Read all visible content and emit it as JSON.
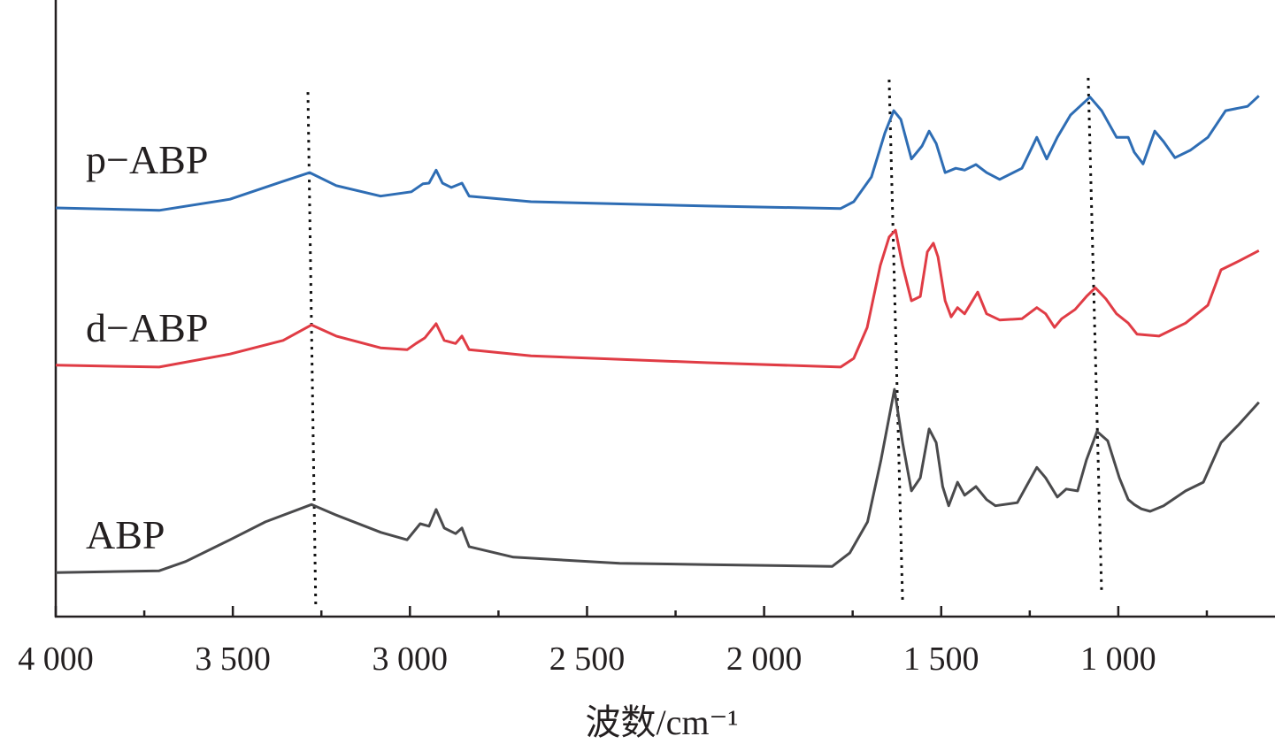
{
  "chart_data": {
    "type": "line",
    "title": "",
    "xlabel": "波数/cm⁻¹",
    "ylabel": "",
    "xlim": [
      4000,
      560
    ],
    "x_reversed": true,
    "ylim": [
      0,
      100
    ],
    "y_units": "arbitrary (offset transmittance)",
    "grid": false,
    "x_ticks": [
      4000,
      3500,
      3000,
      2500,
      2000,
      1500,
      1000
    ],
    "x_tick_labels": [
      "4 000",
      "3 500",
      "3 000",
      "2 500",
      "2 000",
      "1 500",
      "1 000"
    ],
    "x_minor_ticks": [
      3750,
      3250,
      2750,
      2250,
      1750,
      1250,
      750
    ],
    "legend": "inline labels at left of each curve",
    "series": [
      {
        "name": "p−ABP",
        "color": "#2e6db4",
        "x": [
          4000,
          3708,
          3508,
          3358,
          3283,
          3208,
          3083,
          2996,
          2963,
          2946,
          2926,
          2908,
          2883,
          2853,
          2833,
          2658,
          2159,
          1784,
          1747,
          1697,
          1659,
          1634,
          1614,
          1584,
          1554,
          1534,
          1514,
          1489,
          1459,
          1434,
          1402,
          1372,
          1335,
          1272,
          1230,
          1202,
          1172,
          1135,
          1080,
          1047,
          1005,
          972,
          955,
          930,
          897,
          872,
          840,
          797,
          747,
          697,
          635,
          603
        ],
        "y": [
          66,
          65.6,
          67.4,
          70.3,
          71.7,
          69.6,
          67.9,
          68.6,
          69.9,
          70,
          72.1,
          70,
          69.3,
          70,
          67.9,
          67,
          66.3,
          65.9,
          67,
          71,
          78.1,
          81.7,
          80.3,
          73.9,
          76,
          78.4,
          76.4,
          71.7,
          72.4,
          72.1,
          73,
          71.7,
          70.6,
          72.4,
          77.4,
          73.9,
          77.4,
          81,
          83.9,
          81.7,
          77.4,
          77.4,
          75,
          73.1,
          78.4,
          76.7,
          74.1,
          75.3,
          77.4,
          81.7,
          82.4,
          84.1
        ]
      },
      {
        "name": "d−ABP",
        "color": "#e03c45",
        "x": [
          4000,
          3708,
          3508,
          3358,
          3278,
          3208,
          3083,
          3008,
          2983,
          2958,
          2926,
          2903,
          2871,
          2853,
          2833,
          2658,
          2159,
          1784,
          1747,
          1709,
          1672,
          1647,
          1629,
          1609,
          1584,
          1559,
          1539,
          1522,
          1509,
          1489,
          1472,
          1454,
          1434,
          1397,
          1372,
          1335,
          1272,
          1230,
          1205,
          1180,
          1160,
          1122,
          1090,
          1065,
          1035,
          1005,
          972,
          947,
          885,
          810,
          747,
          710,
          660,
          603
        ],
        "y": [
          40.6,
          40.3,
          42.4,
          44.6,
          47.1,
          45.3,
          43.4,
          43.1,
          44.1,
          45,
          47.3,
          44.6,
          44.1,
          45.3,
          43.1,
          42.1,
          41,
          40.3,
          41.7,
          46.7,
          56.7,
          61.3,
          62.4,
          56.7,
          51,
          51.7,
          58.9,
          60.3,
          58.1,
          51,
          48.4,
          49.9,
          48.9,
          52.4,
          48.9,
          47.9,
          48.1,
          49.9,
          48.9,
          46.7,
          48.1,
          49.6,
          51.7,
          53.1,
          51.3,
          48.9,
          47.4,
          45.6,
          45.3,
          47.4,
          50.3,
          56,
          57.4,
          59.1
        ]
      },
      {
        "name": "ABP",
        "color": "#4a4a4c",
        "x": [
          4000,
          3708,
          3633,
          3508,
          3408,
          3278,
          3208,
          3082,
          3008,
          2971,
          2946,
          2926,
          2903,
          2871,
          2853,
          2833,
          2708,
          2408,
          2158,
          1808,
          1758,
          1708,
          1670,
          1632,
          1609,
          1584,
          1559,
          1534,
          1514,
          1496,
          1479,
          1454,
          1434,
          1402,
          1372,
          1347,
          1285,
          1260,
          1230,
          1205,
          1172,
          1147,
          1115,
          1090,
          1060,
          1030,
          997,
          972,
          955,
          935,
          910,
          872,
          810,
          760,
          710,
          660,
          603
        ],
        "y": [
          7.1,
          7.4,
          8.9,
          12.4,
          15.3,
          18.1,
          16.4,
          13.6,
          12.4,
          15,
          14.6,
          17.3,
          14.3,
          13.4,
          14.3,
          11.3,
          9.6,
          8.6,
          8.4,
          8.1,
          10.3,
          15.3,
          25.3,
          36.7,
          28.1,
          20.3,
          22.4,
          30.3,
          28.1,
          21,
          17.9,
          21.7,
          19.6,
          21,
          18.9,
          17.9,
          18.4,
          21,
          24.1,
          22.4,
          19.3,
          20.6,
          20.3,
          25.3,
          29.9,
          28.4,
          22.4,
          18.9,
          18.1,
          17.4,
          17,
          17.9,
          20.3,
          21.7,
          28.1,
          31,
          34.6
        ]
      }
    ],
    "reference_lines": [
      {
        "style": "dotted",
        "x_top": 3288,
        "x_bottom": 3266,
        "y_top": 84.7,
        "y_bottom": 2
      },
      {
        "style": "dotted",
        "x_top": 1647,
        "x_bottom": 1609,
        "y_top": 86.7,
        "y_bottom": 2.4
      },
      {
        "style": "dotted",
        "x_top": 1085,
        "x_bottom": 1047,
        "y_top": 87,
        "y_bottom": 3.6
      }
    ]
  }
}
